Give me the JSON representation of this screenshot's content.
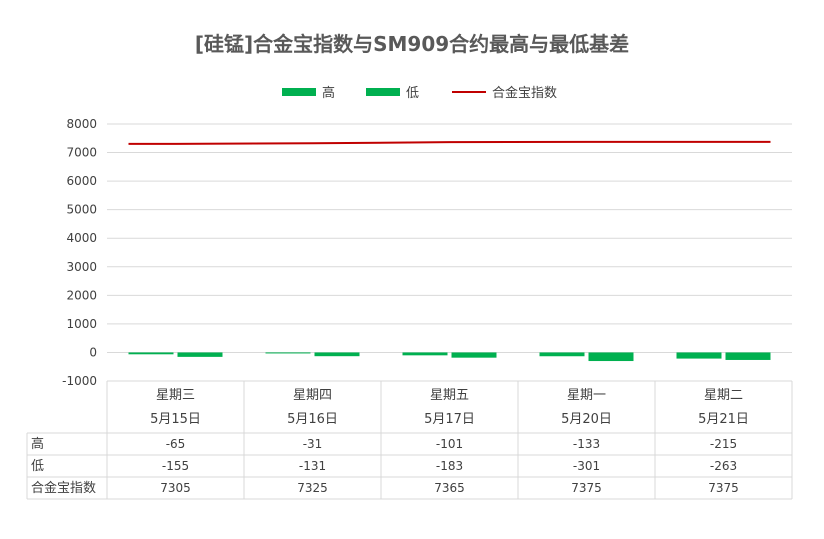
{
  "chart_data": {
    "type": "bar",
    "title": "[硅锰]合金宝指数与SM909合约最高与最低基差",
    "categories": [
      [
        "星期三",
        "5月15日"
      ],
      [
        "星期四",
        "5月16日"
      ],
      [
        "星期五",
        "5月17日"
      ],
      [
        "星期一",
        "5月20日"
      ],
      [
        "星期二",
        "5月21日"
      ]
    ],
    "series": [
      {
        "name": "高",
        "type": "bar",
        "color": "#00B050",
        "values": [
          -65,
          -31,
          -101,
          -133,
          -215
        ]
      },
      {
        "name": "低",
        "type": "bar",
        "color": "#00B050",
        "values": [
          -155,
          -131,
          -183,
          -301,
          -263
        ]
      },
      {
        "name": "合金宝指数",
        "type": "line",
        "color": "#C00000",
        "values": [
          7305,
          7325,
          7365,
          7375,
          7375
        ]
      }
    ],
    "yticks": [
      8000,
      7000,
      6000,
      5000,
      4000,
      3000,
      2000,
      1000,
      0,
      -1000
    ],
    "ylim": [
      -1000,
      8000
    ],
    "grid": true,
    "legend_position": "top",
    "data_table": true
  }
}
